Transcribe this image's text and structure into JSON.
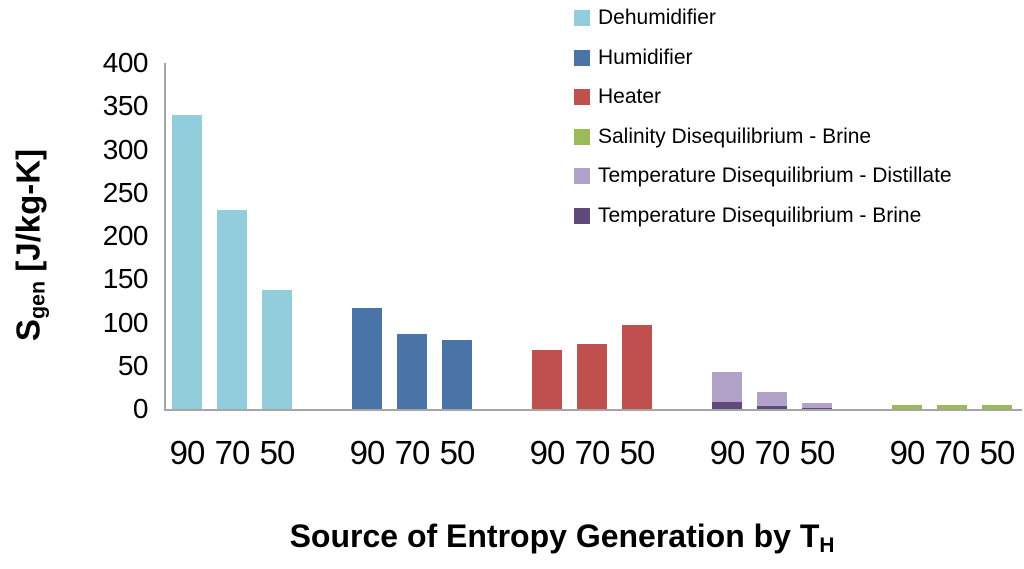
{
  "figure": {
    "background": "#FFFFFF",
    "axis_color": "#A6A6A6",
    "text_color": "#000000"
  },
  "chart_data": {
    "type": "bar",
    "title": "",
    "xlabel": "Source of Entropy Generation by T_H",
    "xlabel_parts": {
      "main": "Source of Entropy Generation by T",
      "sub": "H"
    },
    "ylabel": "S_gen [J/kg-K]",
    "ylabel_parts": {
      "main": "S",
      "sub": "gen",
      "rest": " [J/kg-K]"
    },
    "ylim": [
      0,
      400
    ],
    "ytick_step": 50,
    "yticks": [
      400,
      350,
      300,
      250,
      200,
      150,
      100,
      50,
      0
    ],
    "x_tick_labels_per_group": [
      "90",
      "70",
      "50"
    ],
    "grid": false,
    "legend_position": "top-right",
    "series": [
      {
        "name": "Dehumidifier",
        "color": "#92CDDC",
        "values": [
          340,
          230,
          137
        ]
      },
      {
        "name": "Humidifier",
        "color": "#4A74A8",
        "values": [
          117,
          87,
          80
        ]
      },
      {
        "name": "Heater",
        "color": "#C0504D",
        "values": [
          68,
          75,
          97
        ]
      },
      {
        "name": "Salinity Disequilibrium - Brine",
        "color": "#9BBB59",
        "values": [
          5,
          5,
          5
        ]
      },
      {
        "name": "Temperature Disequilibrium - Distillate",
        "color": "#B3A2C7",
        "values": [
          35,
          17,
          6
        ]
      },
      {
        "name": "Temperature Disequilibrium - Brine",
        "color": "#604A7B",
        "values": [
          8,
          3,
          1
        ]
      }
    ],
    "groups": [
      {
        "name": "Dehumidifier",
        "stack": [
          "Dehumidifier"
        ]
      },
      {
        "name": "Humidifier",
        "stack": [
          "Humidifier"
        ]
      },
      {
        "name": "Heater",
        "stack": [
          "Heater"
        ]
      },
      {
        "name": "Temperature Disequilibrium",
        "stack": [
          "Temperature Disequilibrium - Brine",
          "Temperature Disequilibrium - Distillate"
        ]
      },
      {
        "name": "Salinity Disequilibrium - Brine",
        "stack": [
          "Salinity Disequilibrium - Brine"
        ]
      }
    ],
    "legend": [
      "Dehumidifier",
      "Humidifier",
      "Heater",
      "Salinity Disequilibrium - Brine",
      "Temperature Disequilibrium - Distillate",
      "Temperature Disequilibrium - Brine"
    ]
  }
}
